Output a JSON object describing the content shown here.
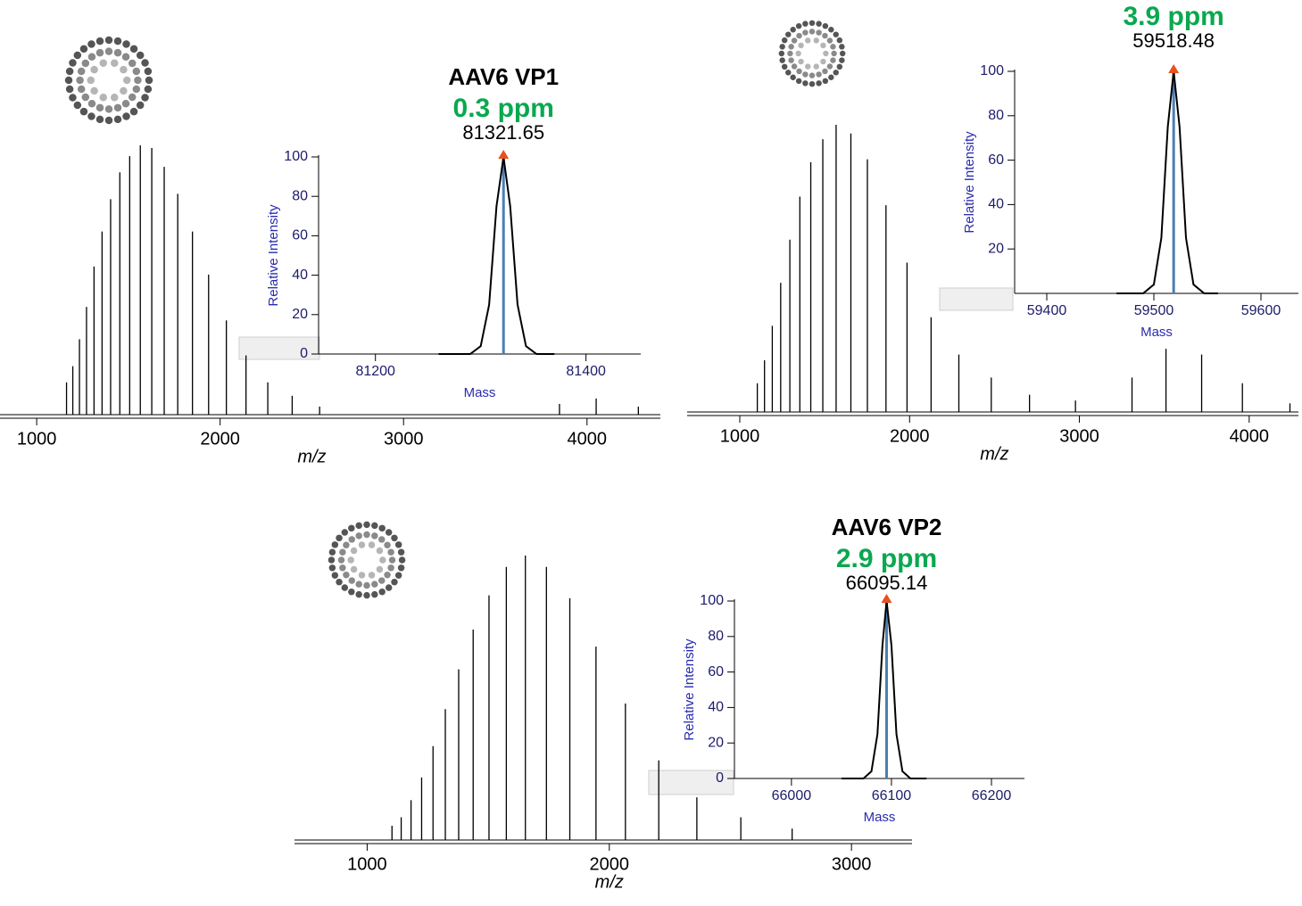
{
  "chart_data": [
    {
      "type": "stem",
      "x_label": "m/z",
      "xlim": [
        800,
        4400
      ],
      "ylim": [
        0,
        100
      ],
      "xticks": [
        1000,
        2000,
        3000,
        4000
      ],
      "color": "#000000",
      "x": [
        1162.7,
        1196.9,
        1233.1,
        1271.6,
        1312.6,
        1356.4,
        1403.1,
        1453.2,
        1507.0,
        1564.9,
        1627.4,
        1695.2,
        1768.9,
        1849.2,
        1937.2,
        2034.0,
        2141.0,
        2259.9,
        2392.8,
        2542.3,
        3850,
        4050,
        4280
      ],
      "values": [
        12,
        18,
        28,
        40,
        55,
        68,
        80,
        90,
        96,
        100,
        99,
        92,
        82,
        68,
        52,
        35,
        22,
        12,
        7,
        3,
        4,
        6,
        3
      ]
    },
    {
      "type": "line",
      "title": "AAV6 VP1",
      "subtitle": "0.3 ppm",
      "x_label": "Mass",
      "y_label": "Relative Intensity",
      "xlim": [
        81146,
        81452
      ],
      "ylim": [
        0,
        100
      ],
      "xticks": [
        81200,
        81400
      ],
      "yticks": [
        0,
        20,
        40,
        60,
        80,
        100
      ],
      "centroid": 81321.65,
      "color": "#000000",
      "centroid_color": "#4a7fb5",
      "marker_color": "#e8501e",
      "x": [
        81260,
        81290,
        81300,
        81308,
        81315,
        81321.65,
        81328,
        81335,
        81343,
        81353,
        81370
      ],
      "values": [
        0,
        0,
        4,
        25,
        75,
        100,
        75,
        25,
        4,
        0,
        0
      ]
    },
    {
      "type": "stem",
      "x_label": "m/z",
      "xlim": [
        690,
        4290
      ],
      "ylim": [
        0,
        100
      ],
      "xticks": [
        1000,
        2000,
        3000,
        4000
      ],
      "color": "#000000",
      "x": [
        1103.2,
        1145.6,
        1191.4,
        1240.9,
        1294.9,
        1353.7,
        1418.1,
        1489.0,
        1567.3,
        1654.3,
        1751.5,
        1861.0,
        1984.9,
        2126.6,
        2290.2,
        2481.0,
        2706.3,
        2976.9,
        3310,
        3510,
        3720,
        3960,
        4240
      ],
      "values": [
        10,
        18,
        30,
        45,
        60,
        75,
        87,
        95,
        100,
        97,
        88,
        72,
        52,
        33,
        20,
        12,
        6,
        4,
        12,
        22,
        20,
        10,
        3
      ]
    },
    {
      "type": "line",
      "subtitle": "3.9 ppm",
      "x_label": "Mass",
      "y_label": "Relative Intensity",
      "xlim": [
        59370,
        59635
      ],
      "ylim": [
        0,
        100
      ],
      "xticks": [
        59400,
        59500,
        59600
      ],
      "yticks": [
        20,
        40,
        60,
        80,
        100
      ],
      "centroid": 59518.48,
      "color": "#000000",
      "centroid_color": "#4a7fb5",
      "marker_color": "#e8501e",
      "x": [
        59465,
        59490,
        59500,
        59507,
        59513,
        59518.48,
        59524,
        59530,
        59537,
        59547,
        59560
      ],
      "values": [
        0,
        0,
        4,
        25,
        75,
        100,
        75,
        25,
        4,
        0,
        0
      ]
    },
    {
      "type": "stem",
      "x_label": "m/z",
      "xlim": [
        700,
        3250
      ],
      "ylim": [
        0,
        100
      ],
      "xticks": [
        1000,
        2000,
        3000
      ],
      "color": "#000000",
      "x": [
        1102.6,
        1140.6,
        1181.3,
        1225.0,
        1272.1,
        1322.9,
        1378.0,
        1437.8,
        1503.2,
        1574.7,
        1653.4,
        1740.3,
        1836.9,
        1945.0,
        2066.5,
        2204.2,
        2361.5,
        2543.1,
        2754.9
      ],
      "values": [
        5,
        8,
        14,
        22,
        33,
        46,
        60,
        74,
        86,
        96,
        100,
        96,
        85,
        68,
        48,
        28,
        15,
        8,
        4
      ]
    },
    {
      "type": "line",
      "title": "AAV6 VP2",
      "subtitle": "2.9 ppm",
      "x_label": "Mass",
      "y_label": "Relative Intensity",
      "xlim": [
        65943,
        66233
      ],
      "ylim": [
        0,
        100
      ],
      "xticks": [
        66000,
        66100,
        66200
      ],
      "yticks": [
        0,
        20,
        40,
        60,
        80,
        100
      ],
      "centroid": 66095.14,
      "color": "#000000",
      "centroid_color": "#4a7fb5",
      "marker_color": "#e8501e",
      "x": [
        66050,
        66072,
        66080,
        66086,
        66091,
        66095.14,
        66100,
        66105,
        66111,
        66119,
        66135
      ],
      "values": [
        0,
        0,
        4,
        25,
        75,
        100,
        75,
        25,
        4,
        0,
        0
      ]
    }
  ]
}
